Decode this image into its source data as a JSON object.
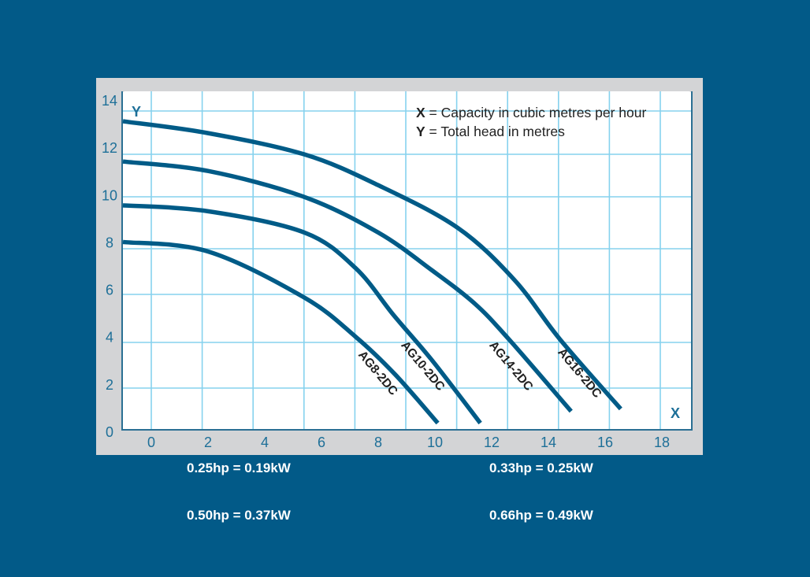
{
  "chart_data": {
    "type": "line",
    "title": "",
    "xlabel": "X",
    "ylabel": "Y",
    "xlim": [
      -1,
      19
    ],
    "ylim": [
      0,
      14
    ],
    "x_ticks": [
      0,
      2,
      4,
      6,
      8,
      10,
      12,
      14,
      16,
      18
    ],
    "y_ticks": [
      0,
      2,
      4,
      6,
      8,
      10,
      12,
      14
    ],
    "grid": true,
    "legend_lines": [
      {
        "key": "X",
        "text": " = Capacity in cubic metres per hour"
      },
      {
        "key": "Y",
        "text": " = Total head in metres"
      }
    ],
    "legend_position": "top-right",
    "series": [
      {
        "name": "AG16-2DC",
        "points": [
          [
            -1,
            13.1
          ],
          [
            2,
            12.6
          ],
          [
            5.4,
            11.7
          ],
          [
            8,
            10.4
          ],
          [
            10.8,
            8.6
          ],
          [
            12.8,
            6.4
          ],
          [
            14.4,
            3.9
          ],
          [
            16.55,
            0.95
          ]
        ]
      },
      {
        "name": "AG14-2DC",
        "points": [
          [
            -1,
            11.4
          ],
          [
            2,
            11.0
          ],
          [
            5.4,
            9.9
          ],
          [
            8,
            8.4
          ],
          [
            9.9,
            6.8
          ],
          [
            11.4,
            5.4
          ],
          [
            12.6,
            3.9
          ],
          [
            14.8,
            0.85
          ]
        ]
      },
      {
        "name": "AG10-2DC",
        "points": [
          [
            -1,
            9.55
          ],
          [
            2,
            9.3
          ],
          [
            5.4,
            8.4
          ],
          [
            7.2,
            6.9
          ],
          [
            8.55,
            4.9
          ],
          [
            9.9,
            3.0
          ],
          [
            11.6,
            0.35
          ]
        ]
      },
      {
        "name": "AG8-2DC",
        "points": [
          [
            -1,
            8.0
          ],
          [
            2,
            7.6
          ],
          [
            5.4,
            5.65
          ],
          [
            7.2,
            4.0
          ],
          [
            8.6,
            2.4
          ],
          [
            10.1,
            0.35
          ]
        ]
      }
    ]
  },
  "colors": {
    "background": "#025a88",
    "panel": "#d3d4d6",
    "curve": "#005b87",
    "grid": "#86d2ee",
    "axis_text": "#1d6f98"
  },
  "footer": {
    "items": [
      "0.25hp = 0.19kW",
      "0.33hp = 0.25kW",
      "0.50hp = 0.37kW",
      "0.66hp = 0.49kW"
    ]
  }
}
